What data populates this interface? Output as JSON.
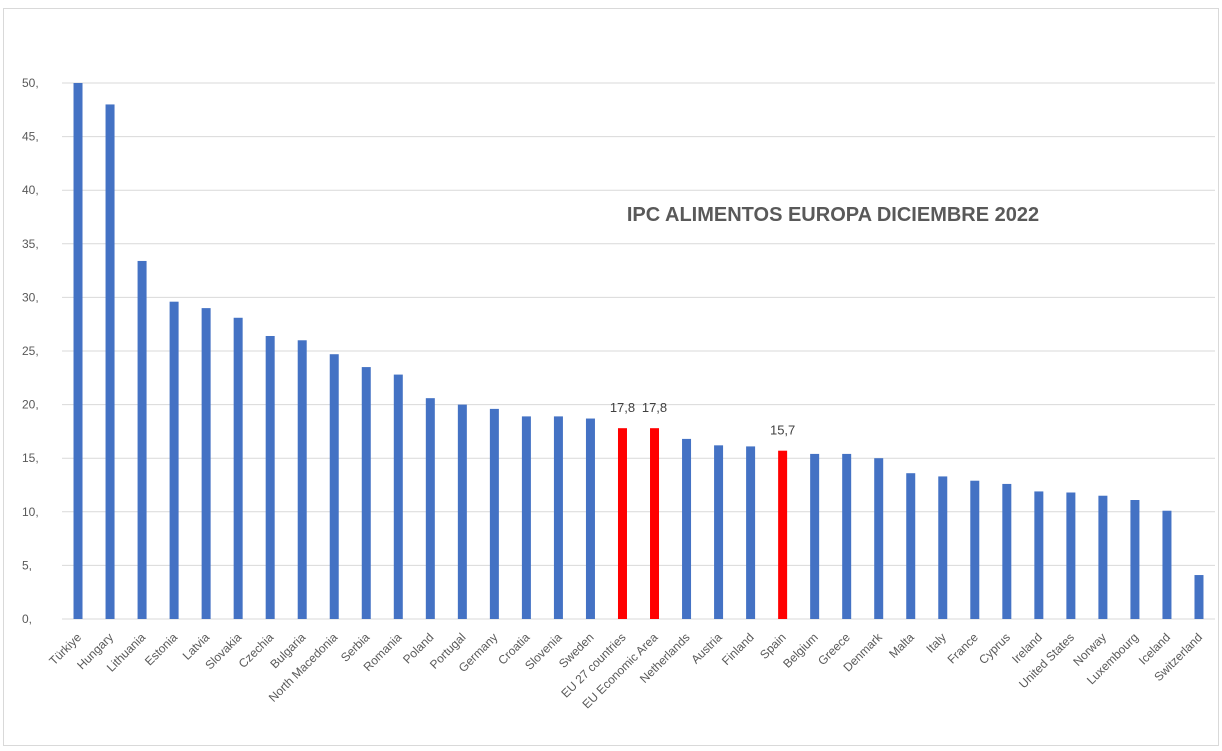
{
  "chart_data": {
    "type": "bar",
    "title": "IPC ALIMENTOS EUROPA DICIEMBRE 2022",
    "xlabel": "",
    "ylabel": "",
    "ylim": [
      0,
      50
    ],
    "yticks": [
      "0,",
      "5,",
      "10,",
      "15,",
      "20,",
      "25,",
      "30,",
      "35,",
      "40,",
      "45,",
      "50,"
    ],
    "grid": true,
    "legend": "none",
    "colors": {
      "default": "#4472c4",
      "highlight": "#ff0000",
      "grid": "#d9d9d9"
    },
    "categories": [
      "Türkiye",
      "Hungary",
      "Lithuania",
      "Estonia",
      "Latvia",
      "Slovakia",
      "Czechia",
      "Bulgaria",
      "North Macedonia",
      "Serbia",
      "Romania",
      "Poland",
      "Portugal",
      "Germany",
      "Croatia",
      "Slovenia",
      "Sweden",
      "EU 27 countries",
      "EU Economic Area",
      "Netherlands",
      "Austria",
      "Finland",
      "Spain",
      "Belgium",
      "Greece",
      "Denmark",
      "Malta",
      "Italy",
      "France",
      "Cyprus",
      "Ireland",
      "United States",
      "Norway",
      "Luxembourg",
      "Iceland",
      "Switzerland"
    ],
    "values": [
      50.0,
      48.0,
      33.4,
      29.6,
      29.0,
      28.1,
      26.4,
      26.0,
      24.7,
      23.5,
      22.8,
      20.6,
      20.0,
      19.6,
      18.9,
      18.9,
      18.7,
      17.8,
      17.8,
      16.8,
      16.2,
      16.1,
      15.7,
      15.4,
      15.4,
      15.0,
      13.6,
      13.3,
      12.9,
      12.6,
      11.9,
      11.8,
      11.5,
      11.1,
      10.1,
      4.1
    ],
    "highlighted": [
      17,
      18,
      22
    ],
    "data_labels": [
      {
        "index": 17,
        "text": "17,8"
      },
      {
        "index": 18,
        "text": "17,8"
      },
      {
        "index": 22,
        "text": "15,7"
      }
    ]
  }
}
